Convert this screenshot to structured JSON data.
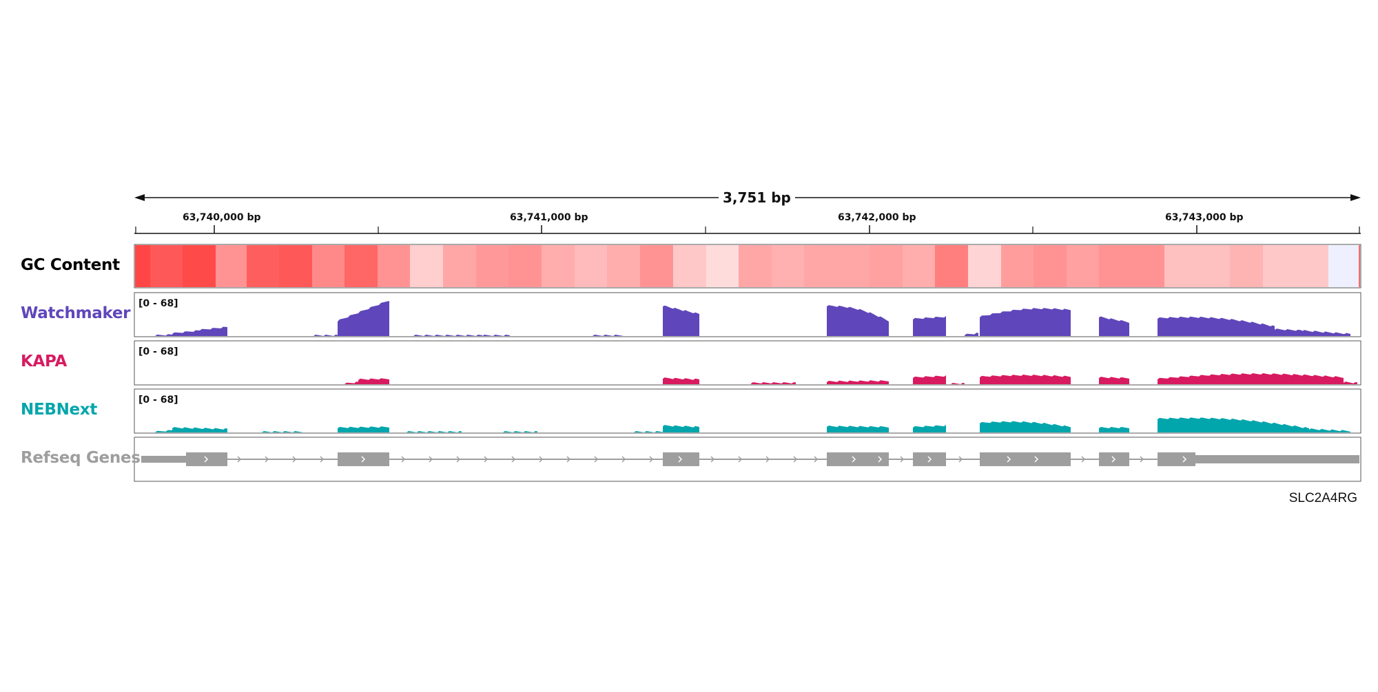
{
  "ruler": {
    "span_label": "3,751 bp",
    "ticks": [
      {
        "label": "63,740,000 bp"
      },
      {
        "label": "63,741,000 bp"
      },
      {
        "label": "63,742,000 bp"
      },
      {
        "label": "63,743,000 bp"
      }
    ]
  },
  "tracks": {
    "gc": {
      "label": "GC Content",
      "color": "#000000"
    },
    "watchmaker": {
      "label": "Watchmaker",
      "range": "[0 - 68]",
      "color": "#5f46bb"
    },
    "kapa": {
      "label": "KAPA",
      "range": "[0 - 68]",
      "color": "#d81b60"
    },
    "nebnext": {
      "label": "NEBNext",
      "range": "[0 - 68]",
      "color": "#00a6ac"
    },
    "refseq": {
      "label": "Refseq Genes",
      "color": "#9e9e9e"
    }
  },
  "gene": {
    "name": "SLC2A4RG"
  },
  "colors": {
    "gc_high": "#ff3b3b",
    "gc_low": "#eef0ff",
    "gene": "#9e9e9e"
  }
}
